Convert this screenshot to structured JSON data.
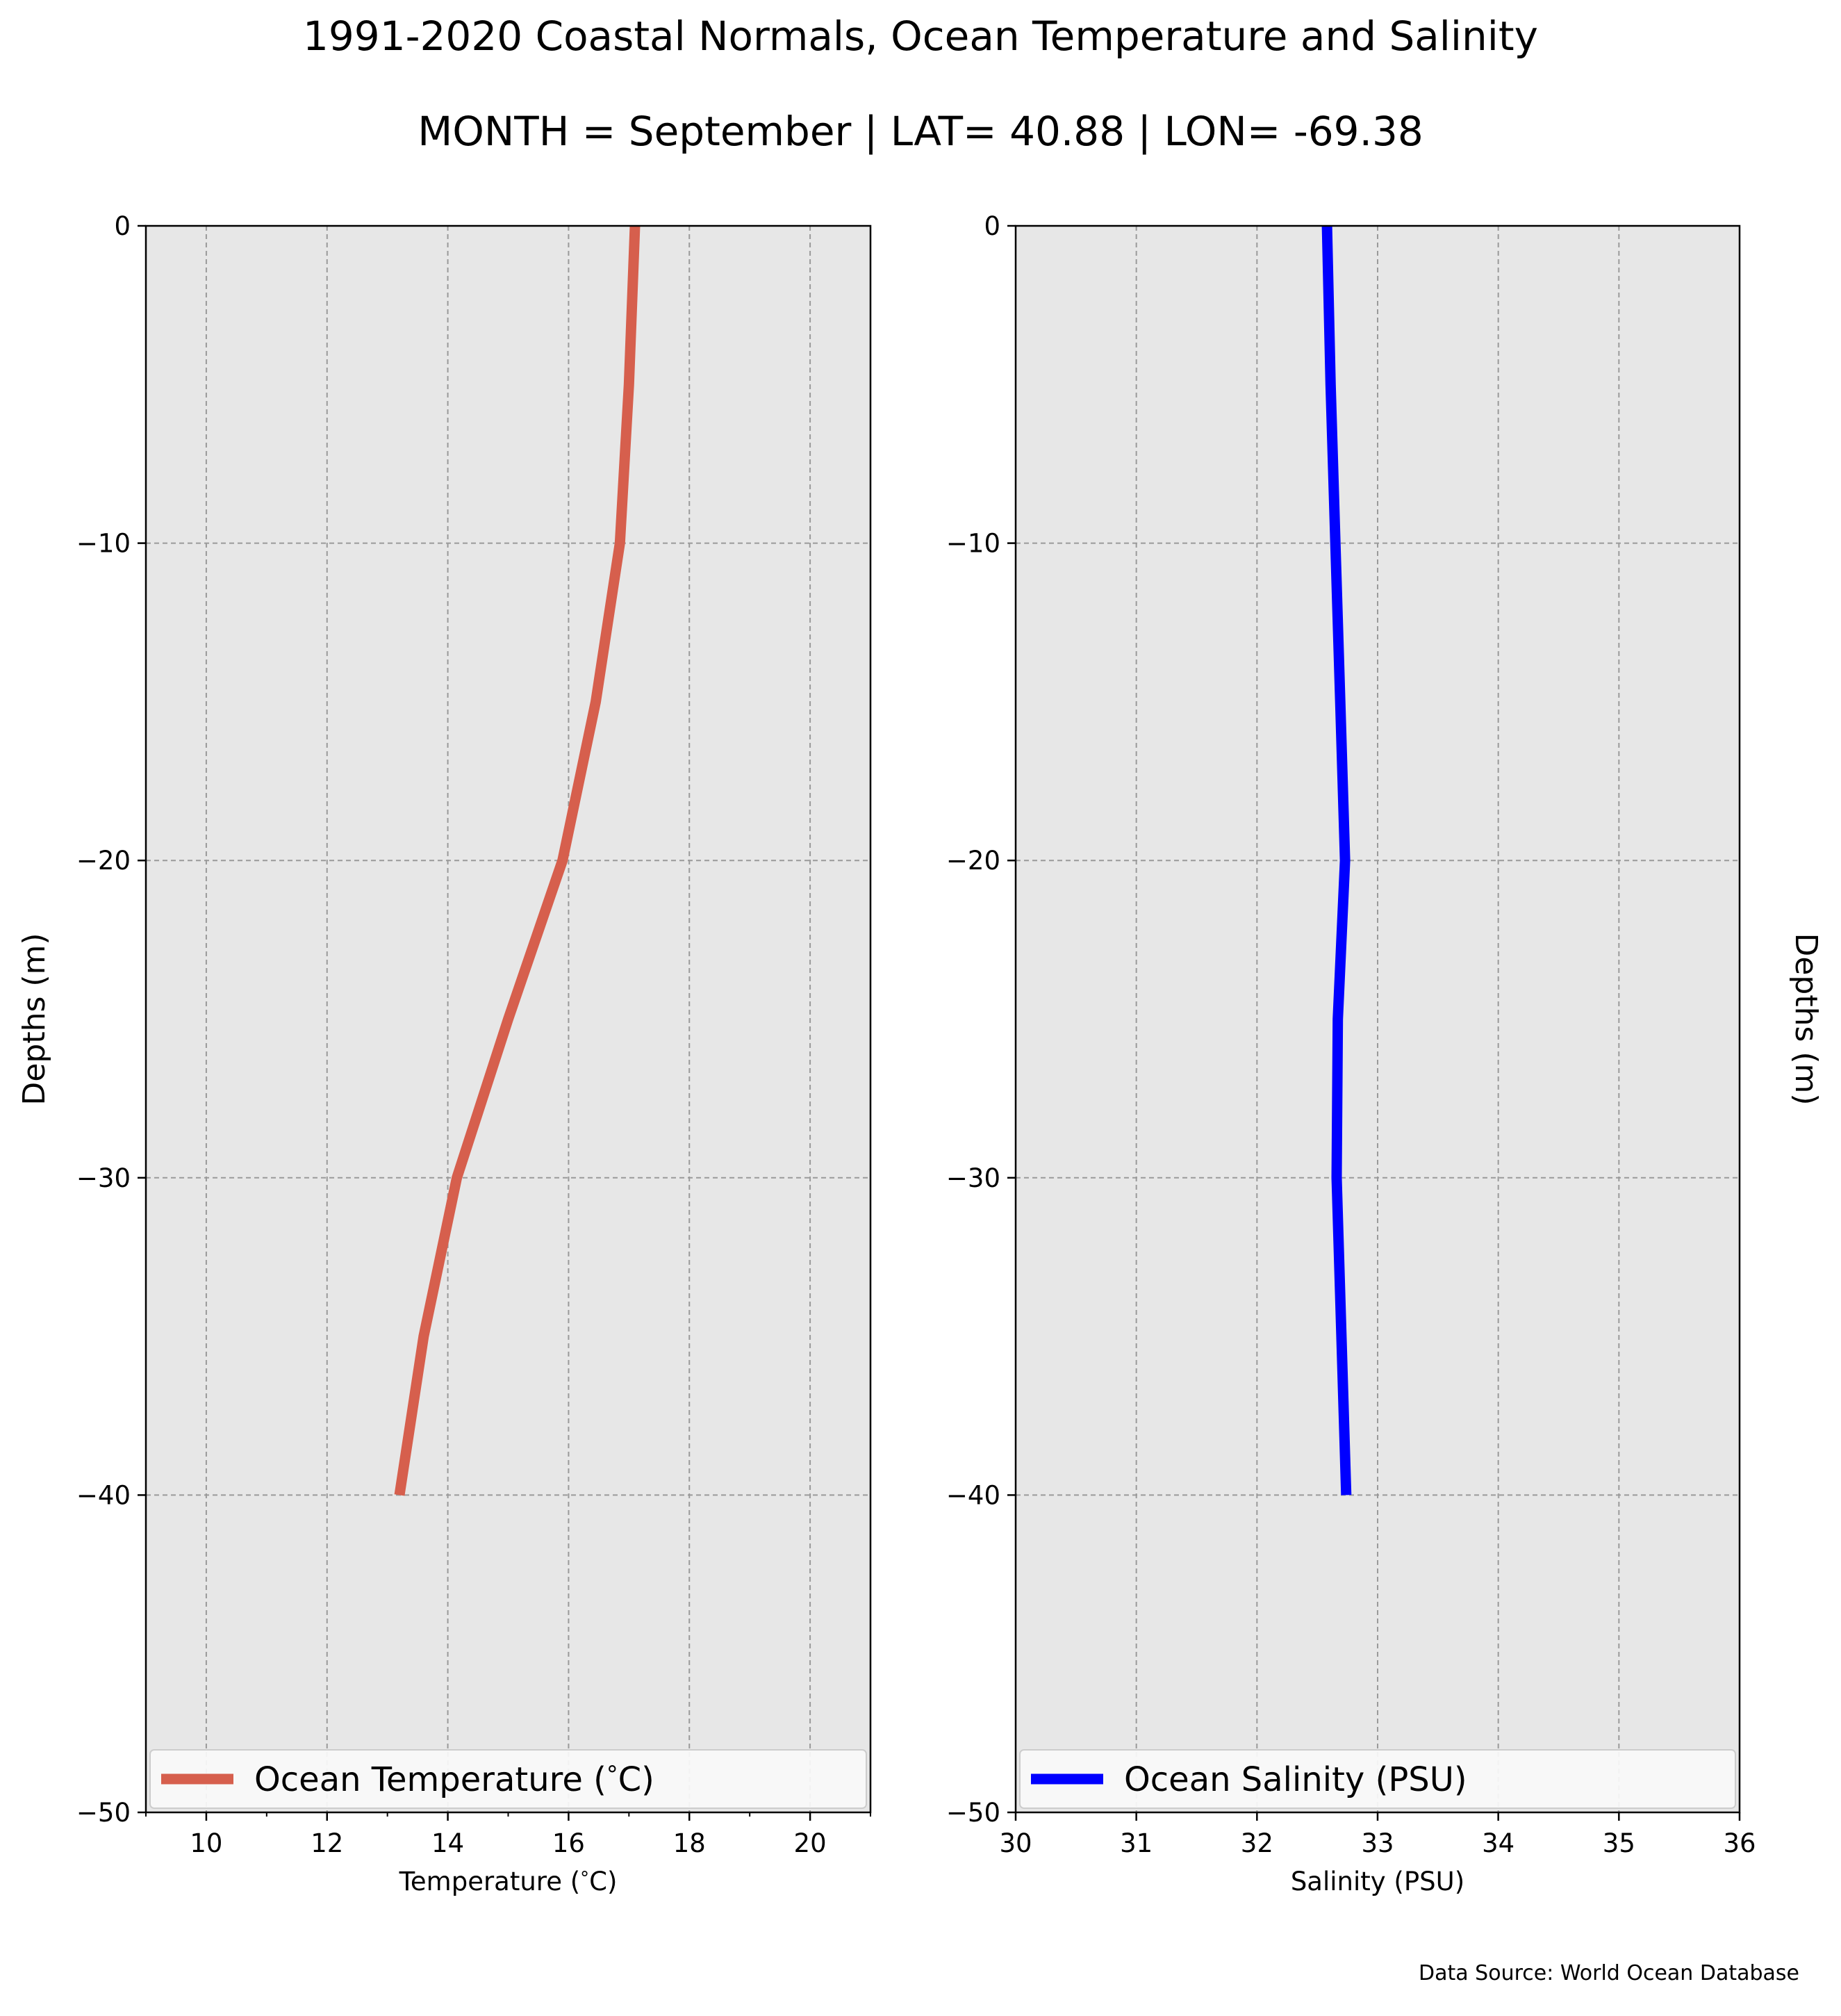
{
  "title": "1991-2020 Coastal Normals, Ocean Temperature and Salinity",
  "subtitle": "MONTH = September | LAT= 40.88 | LON= -69.38",
  "source": "Data Source: World Ocean Database",
  "chart_data": [
    {
      "type": "line",
      "xlabel": "Temperature ($^\\circ$C)",
      "ylabel": "Depths (m)",
      "xlim": [
        9,
        21
      ],
      "ylim": [
        -50,
        0
      ],
      "xticks": [
        10,
        12,
        14,
        16,
        18,
        20
      ],
      "yticks": [
        0,
        -10,
        -20,
        -30,
        -40,
        -50
      ],
      "grid": true,
      "legend_position": "bottom",
      "series": [
        {
          "name": "Ocean Temperature ($^\\circ$C)",
          "color": "#d65f4d",
          "x": [
            17.1,
            17.0,
            16.85,
            16.45,
            15.9,
            15.0,
            14.15,
            13.6,
            13.2
          ],
          "y": [
            0,
            -5,
            -10,
            -15,
            -20,
            -25,
            -30,
            -35,
            -40
          ]
        }
      ]
    },
    {
      "type": "line",
      "xlabel": "Salinity (PSU)",
      "ylabel": "Depths (m)",
      "xlim": [
        30,
        36
      ],
      "ylim": [
        -50,
        0
      ],
      "xticks": [
        30,
        31,
        32,
        33,
        34,
        35,
        36
      ],
      "yticks": [
        0,
        -10,
        -20,
        -30,
        -40,
        -50
      ],
      "grid": true,
      "legend_position": "bottom",
      "series": [
        {
          "name": "Ocean Salinity (PSU)",
          "color": "#0000ff",
          "x": [
            32.58,
            32.61,
            32.65,
            32.69,
            32.73,
            32.67,
            32.66,
            32.7,
            32.74
          ],
          "y": [
            0,
            -5,
            -10,
            -15,
            -20,
            -25,
            -30,
            -35,
            -40
          ]
        }
      ]
    }
  ]
}
